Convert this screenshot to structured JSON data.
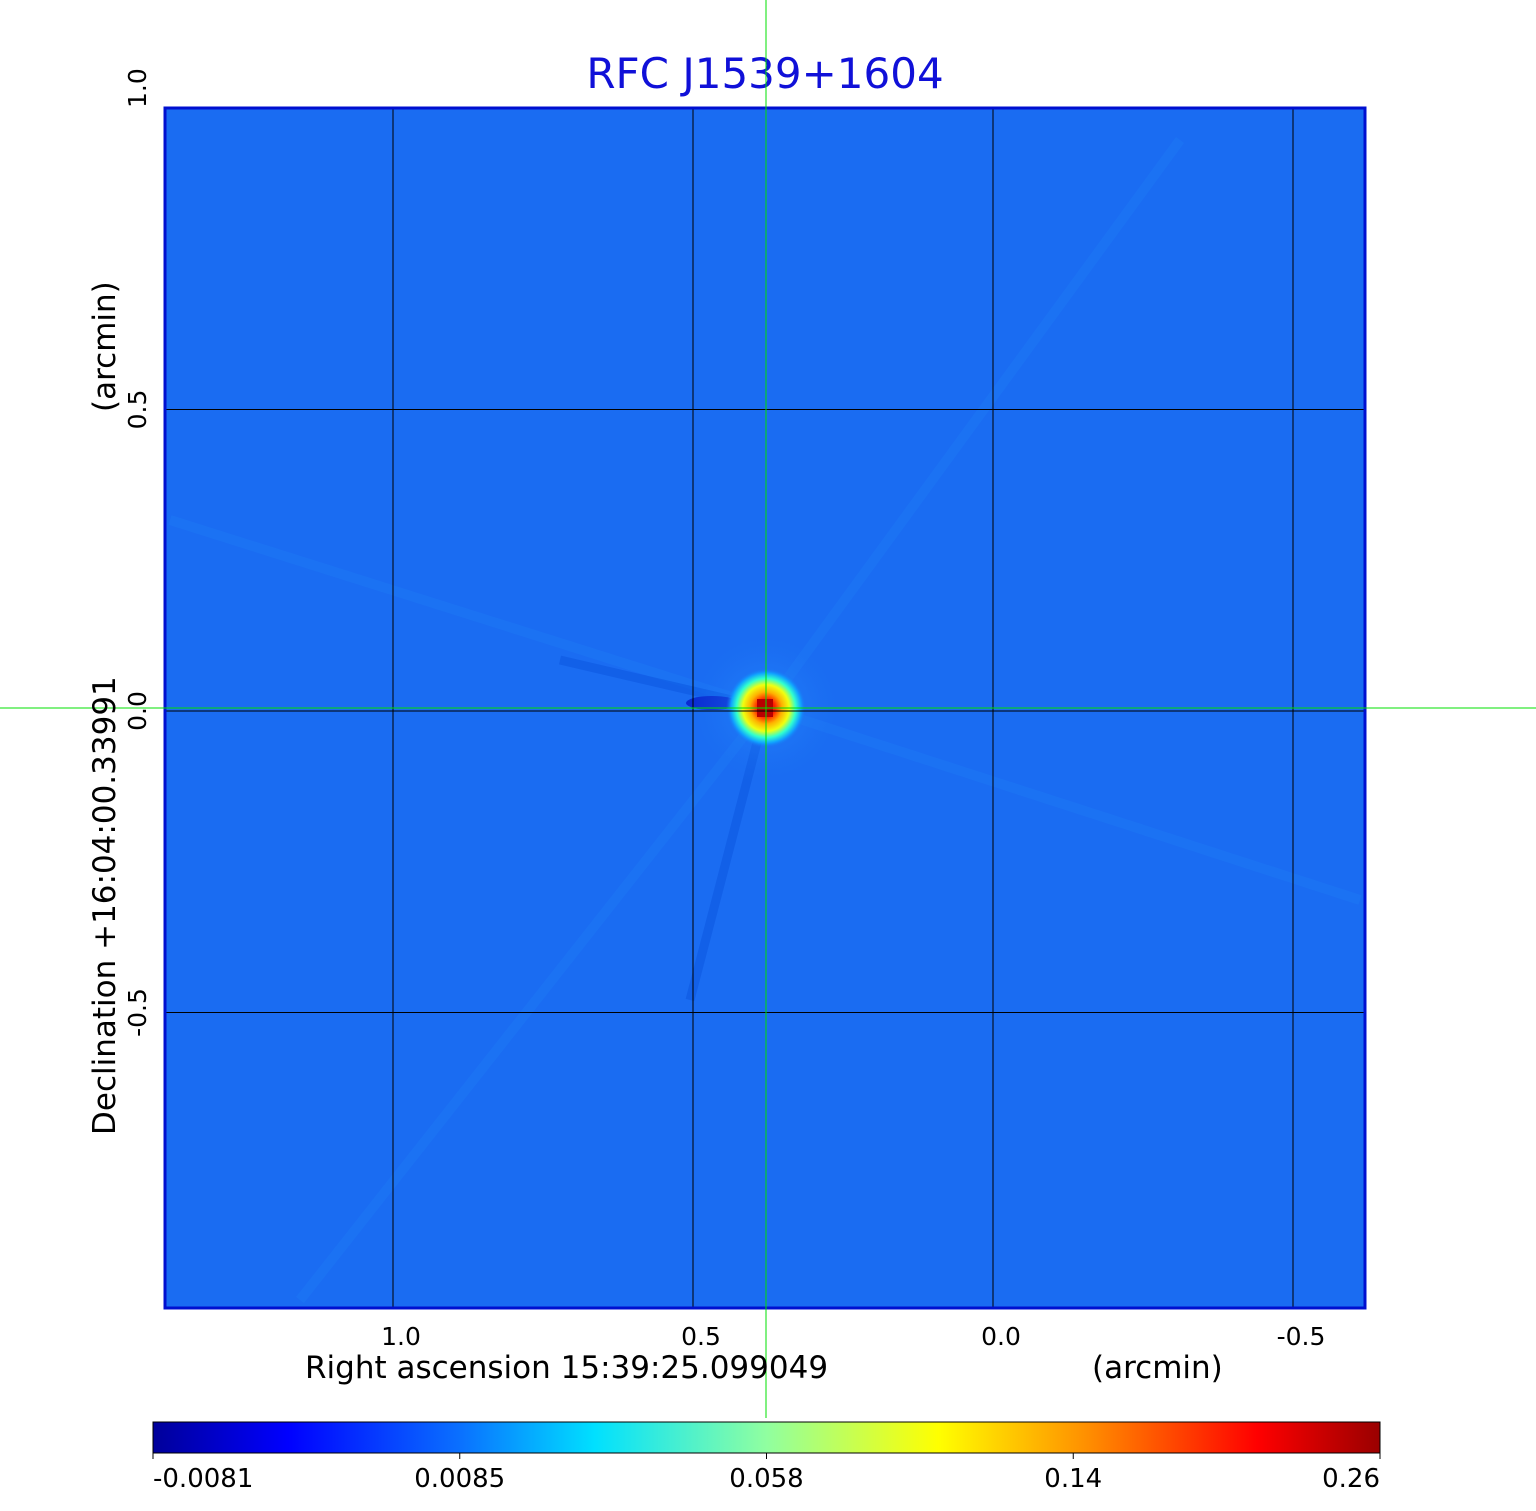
{
  "chart_data": {
    "type": "heatmap",
    "title": "RFC J1539+1604",
    "colormap": "jet",
    "x_axis": {
      "label": "Right ascension  15:39:25.099049",
      "unit_label": "(arcmin)",
      "ticks": [
        {
          "value": 1.0,
          "label": "1.0"
        },
        {
          "value": 0.5,
          "label": "0.5"
        },
        {
          "value": 0.0,
          "label": "0.0"
        },
        {
          "value": -0.5,
          "label": "-0.5"
        }
      ],
      "range": [
        1.38,
        -0.62
      ],
      "inverted": true
    },
    "y_axis": {
      "label": "Declination  +16:04:00.33991",
      "unit_label": "(arcmin)",
      "ticks": [
        {
          "value": 1.0,
          "label": "1.0"
        },
        {
          "value": 0.5,
          "label": "0.5"
        },
        {
          "value": 0.0,
          "label": "0.0"
        },
        {
          "value": -0.5,
          "label": "-0.5"
        }
      ],
      "range": [
        -0.99,
        1.0
      ]
    },
    "grid": true,
    "crosshair": {
      "x": 0.38,
      "y": 0.0,
      "color": "#00e000"
    },
    "source_peak": {
      "x": 0.38,
      "y": 0.0,
      "value": 0.26
    },
    "colorbar": {
      "min": -0.0081,
      "max": 0.26,
      "tick_labels": [
        "-0.0081",
        "0.0085",
        "0.058",
        "0.14",
        "0.26"
      ]
    }
  }
}
